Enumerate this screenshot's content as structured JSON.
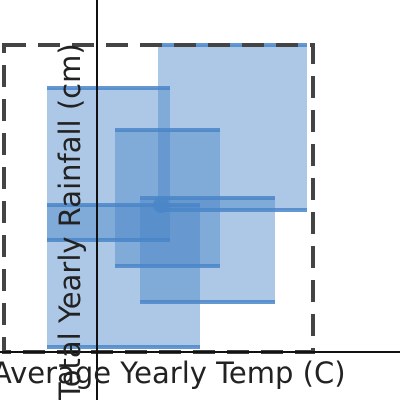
{
  "chart_data": {
    "type": "range",
    "x_label": "Average Yearly Temp (C)",
    "y_label": "Total Yearly Rainfall (cm)",
    "xlim": [
      -4.85,
      15.15
    ],
    "ylim": [
      -24,
      176
    ],
    "color": "#4a86c8",
    "ranges": [
      {
        "xmin": -2.5,
        "xmax": 3.65,
        "ymin": 56,
        "ymax": 132
      },
      {
        "xmin": -2.5,
        "xmax": 5.15,
        "ymin": 2.5,
        "ymax": 73.5
      },
      {
        "xmin": 0.9,
        "xmax": 6.15,
        "ymin": 43,
        "ymax": 111
      },
      {
        "xmin": 2.15,
        "xmax": 8.9,
        "ymin": 25,
        "ymax": 77
      },
      {
        "xmin": 3.05,
        "xmax": 10.5,
        "ymin": 71,
        "ymax": 153.5
      }
    ],
    "point": {
      "x": 3.2,
      "y": 73.5
    }
  }
}
